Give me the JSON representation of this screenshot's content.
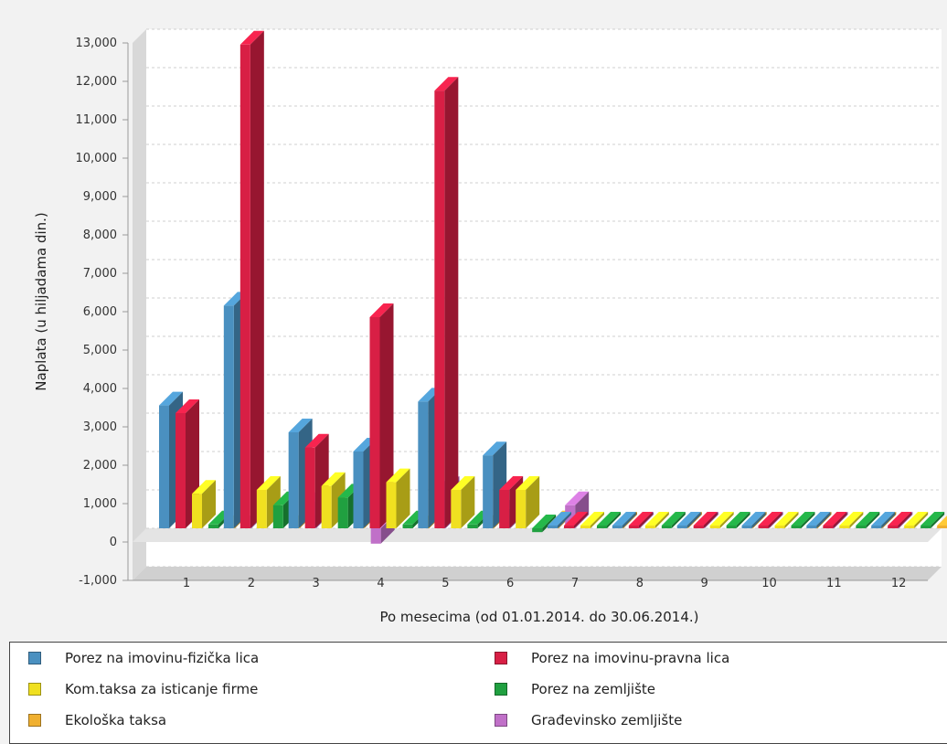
{
  "chart_data": {
    "type": "bar",
    "title": "",
    "xlabel": "Po mesecima (od 01.01.2014. do 30.06.2014.)",
    "ylabel": "Naplata (u hiljadama din.)",
    "ylim": [
      -1000,
      13000
    ],
    "yticks": [
      "-1,000",
      "0",
      "1,000",
      "2,000",
      "3,000",
      "4,000",
      "5,000",
      "6,000",
      "7,000",
      "8,000",
      "9,000",
      "10,000",
      "11,000",
      "12,000",
      "13,000"
    ],
    "categories": [
      "1",
      "2",
      "3",
      "4",
      "5",
      "6",
      "7",
      "8",
      "9",
      "10",
      "11",
      "12"
    ],
    "grid": true,
    "legend_position": "bottom",
    "series": [
      {
        "name": "Porez na imovinu-fizička lica",
        "color": "#4a90c0",
        "values": [
          3200,
          5800,
          2500,
          2000,
          3300,
          1900,
          0,
          0,
          0,
          0,
          0,
          0
        ]
      },
      {
        "name": "Porez na imovinu-pravna lica",
        "color": "#d81f45",
        "values": [
          3000,
          12600,
          2100,
          5500,
          11400,
          1000,
          0,
          0,
          0,
          0,
          0,
          0
        ]
      },
      {
        "name": "Kom.taksa za isticanje firme",
        "color": "#f0e020",
        "values": [
          900,
          1000,
          1100,
          1200,
          1000,
          1000,
          0,
          0,
          0,
          0,
          0,
          0
        ]
      },
      {
        "name": "Porez na zemljište",
        "color": "#20a040",
        "values": [
          100,
          600,
          800,
          100,
          100,
          -100,
          0,
          0,
          0,
          0,
          0,
          0
        ]
      },
      {
        "name": "Ekološka taksa",
        "color": "#f0b030",
        "values": [
          100,
          100,
          100,
          100,
          100,
          100,
          0,
          0,
          0,
          0,
          0,
          0
        ]
      },
      {
        "name": "Građevinsko zemljište",
        "color": "#c070c8",
        "values": [
          100,
          700,
          -400,
          1000,
          500,
          600,
          0,
          0,
          0,
          0,
          0,
          0
        ]
      }
    ]
  }
}
